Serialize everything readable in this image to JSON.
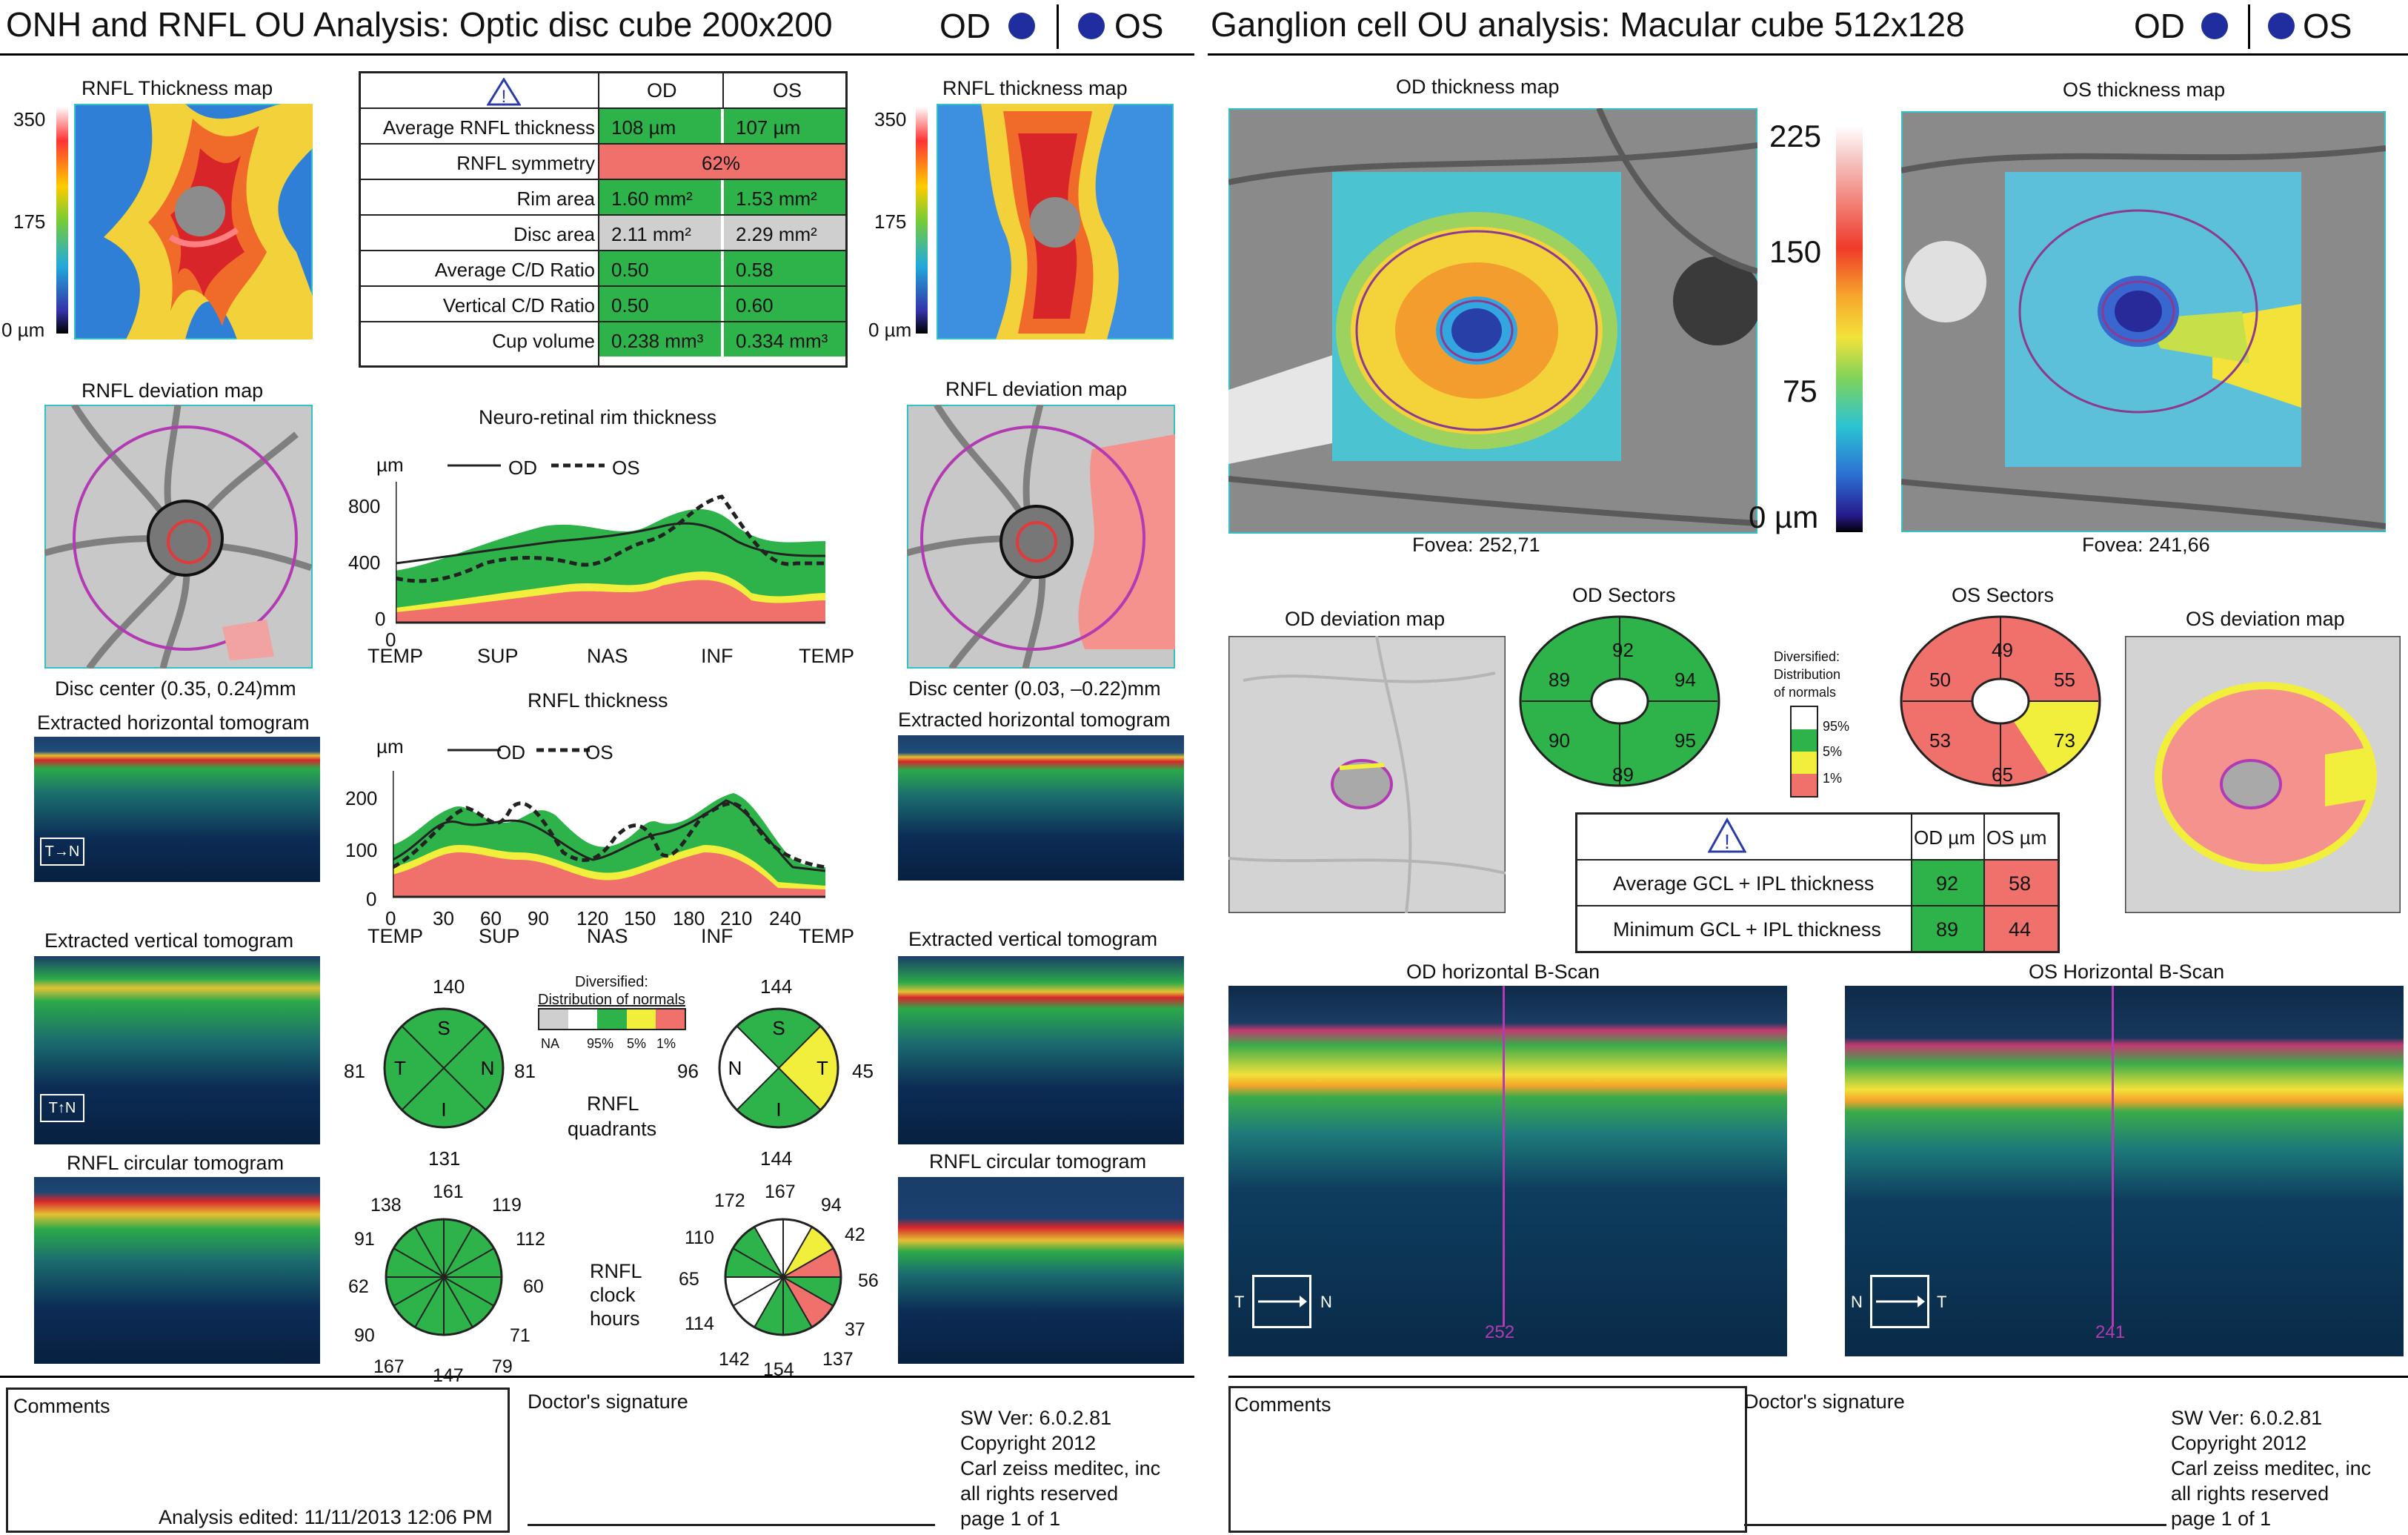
{
  "left": {
    "title": "ONH and RNFL OU Analysis: Optic disc cube 200x200",
    "od": "OD",
    "os": "OS",
    "rnfl_map_left": "RNFL Thickness map",
    "rnfl_map_right": "RNFL thickness map",
    "scale": [
      "350",
      "175",
      "0 µm"
    ],
    "table": {
      "head": [
        "OD",
        "OS"
      ],
      "rows": [
        [
          "Average RNFL thickness",
          "108 µm",
          "107 µm"
        ],
        [
          "RNFL symmetry",
          "62%",
          ""
        ],
        [
          "Rim area",
          "1.60 mm²",
          "1.53 mm²"
        ],
        [
          "Disc area",
          "2.11 mm²",
          "2.29 mm²"
        ],
        [
          "Average C/D Ratio",
          "0.50",
          "0.58"
        ],
        [
          "Vertical C/D Ratio",
          "0.50",
          "0.60"
        ],
        [
          "Cup volume",
          "0.238 mm³",
          "0.334 mm³"
        ]
      ]
    },
    "dev_map": "RNFL deviation map",
    "disc_left": "Disc center (0.35, 0.24)mm",
    "disc_right": "Disc center (0.03, –0.22)mm",
    "htomo": "Extracted horizontal tomogram",
    "vtomo": "Extracted vertical tomogram",
    "ctomo": "RNFL circular tomogram",
    "dir_tn": "T",
    "dir_nt": "N",
    "rim_chart": {
      "title": "Neuro-retinal rim thickness",
      "unit": "µm",
      "legend_od": "OD",
      "legend_os": "OS",
      "yticks": [
        "800",
        "400",
        "0"
      ],
      "x0": "0",
      "xcats": [
        "TEMP",
        "SUP",
        "NAS",
        "INF",
        "TEMP"
      ]
    },
    "rnfl_chart": {
      "title": "RNFL thickness",
      "unit": "µm",
      "legend_od": "OD",
      "legend_os": "OS",
      "yticks": [
        "200",
        "100",
        "0"
      ],
      "xnums": [
        "0",
        "30",
        "60",
        "90",
        "120",
        "150",
        "180",
        "210",
        "240"
      ],
      "xcats": [
        "TEMP",
        "SUP",
        "NAS",
        "INF",
        "TEMP"
      ]
    },
    "quadrants": {
      "od": {
        "S": "140",
        "T": "81",
        "N": "81",
        "I": "131"
      },
      "os": {
        "S": "144",
        "T": "45",
        "N": "96",
        "I": "144"
      },
      "letters": [
        "S",
        "T",
        "N",
        "I"
      ],
      "label1": "RNFL",
      "label2": "quadrants"
    },
    "legend": {
      "title": "Diversified:",
      "sub": "Distribution of normals",
      "na": "NA",
      "p95": "95%",
      "p5": "5%",
      "p1": "1%"
    },
    "clock": {
      "od": [
        "161",
        "119",
        "112",
        "60",
        "71",
        "79",
        "147",
        "167",
        "90",
        "62",
        "91",
        "138"
      ],
      "os": [
        "167",
        "94",
        "42",
        "56",
        "37",
        "137",
        "154",
        "142",
        "114",
        "65",
        "110",
        "172"
      ],
      "label1": "RNFL",
      "label2": "clock",
      "label3": "hours"
    },
    "footer": {
      "comments": "Comments",
      "edited": "Analysis edited: 11/11/2013 12:06 PM",
      "signature": "Doctor's signature",
      "sw": "SW Ver: 6.0.2.81",
      "copy": "Copyright 2012",
      "company": "Carl zeiss meditec, inc",
      "rights": "all rights reserved",
      "page": "page 1 of 1"
    }
  },
  "right": {
    "title": "Ganglion cell OU analysis: Macular cube 512x128",
    "od": "OD",
    "os": "OS",
    "od_map": "OD thickness map",
    "os_map": "OS thickness map",
    "scale": [
      "225",
      "150",
      "75",
      "0 µm"
    ],
    "fovea_od": "Fovea: 252,71",
    "fovea_os": "Fovea: 241,66",
    "od_dev": "OD deviation map",
    "os_dev": "OS deviation map",
    "od_sectors": {
      "title": "OD Sectors",
      "values": [
        "92",
        "94",
        "95",
        "89",
        "90",
        "89"
      ]
    },
    "os_sectors": {
      "title": "OS Sectors",
      "values": [
        "49",
        "55",
        "73",
        "65",
        "53",
        "50"
      ]
    },
    "legend": {
      "l1": "Diversified:",
      "l2": "Distribution",
      "l3": "of normals",
      "p95": "95%",
      "p5": "5%",
      "p1": "1%"
    },
    "gcl_table": {
      "head_od": "OD µm",
      "head_os": "OS µm",
      "rows": [
        [
          "Average GCL + IPL thickness",
          "92",
          "58"
        ],
        [
          "Minimum GCL + IPL thickness",
          "89",
          "44"
        ]
      ]
    },
    "od_bscan": "OD horizontal B-Scan",
    "os_bscan": "OS Horizontal B-Scan",
    "od_pos": "252",
    "os_pos": "241",
    "tn": [
      "T",
      "N"
    ],
    "nt": [
      "N",
      "T"
    ],
    "footer": {
      "comments": "Comments",
      "signature": "Doctor's signature",
      "sw": "SW Ver: 6.0.2.81",
      "copy": "Copyright 2012",
      "company": "Carl zeiss meditec, inc",
      "rights": "all rights reserved",
      "page": "page 1 of 1"
    }
  },
  "colors": {
    "green": "#2db34a",
    "red": "#f0716b",
    "yellow": "#f2ee3c",
    "gray": "#cfcfcf",
    "teal": "#32c2c6",
    "purple": "#b23bb3"
  }
}
